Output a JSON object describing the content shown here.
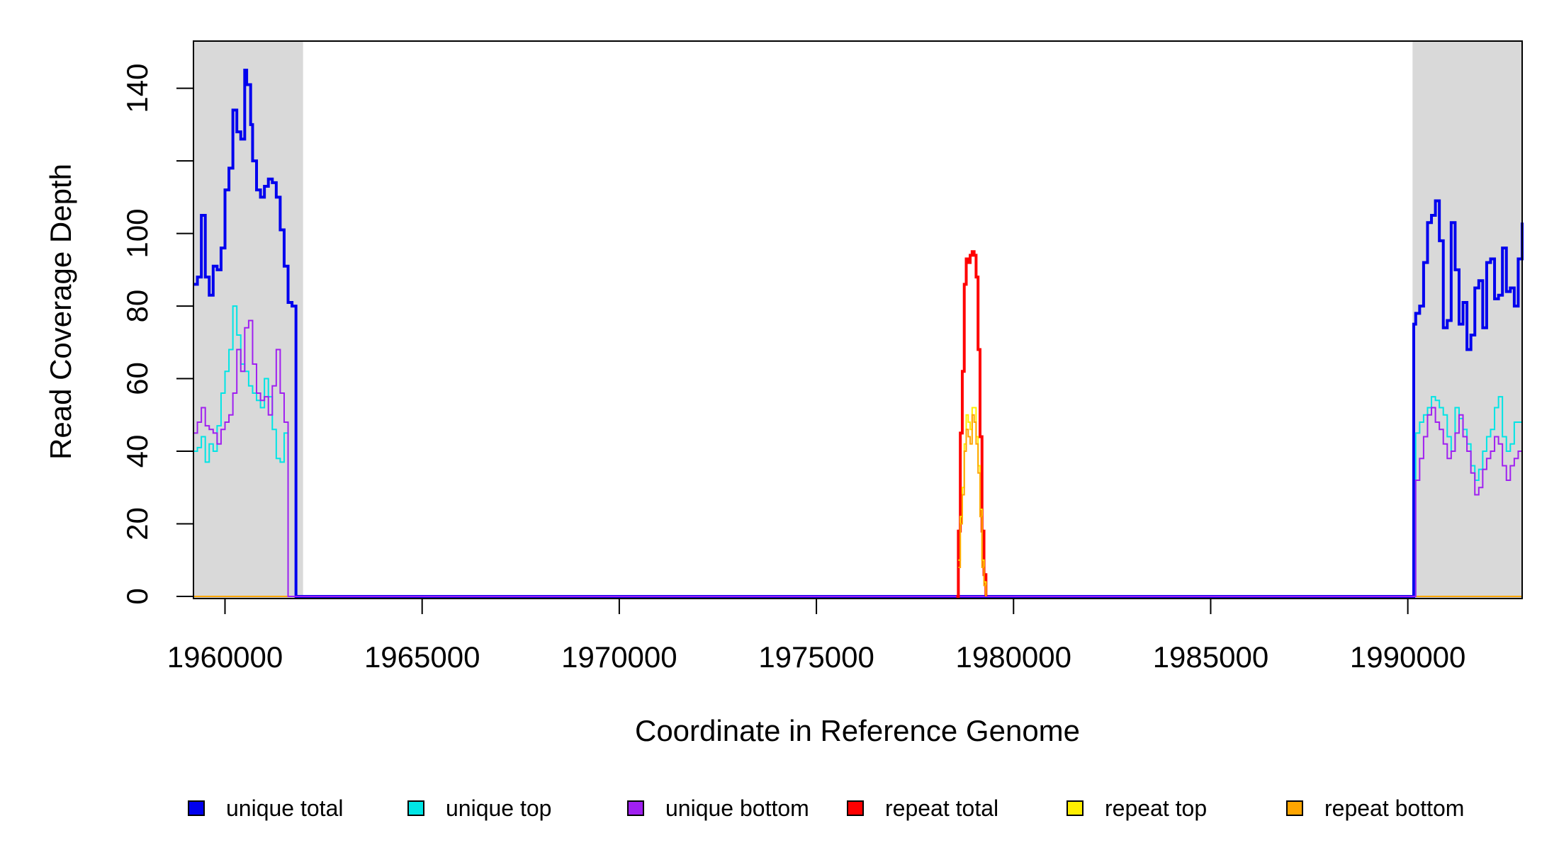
{
  "chart_data": {
    "type": "line",
    "xlabel": "Coordinate in Reference Genome",
    "ylabel": "Read Coverage Depth",
    "xlim": [
      1959200,
      1992900
    ],
    "ylim": [
      0,
      153
    ],
    "x_ticks": [
      1960000,
      1965000,
      1970000,
      1975000,
      1980000,
      1985000,
      1990000
    ],
    "x_tick_labels": [
      "1960000",
      "1965000",
      "1970000",
      "1975000",
      "1980000",
      "1985000",
      "1990000"
    ],
    "y_ticks": [
      0,
      20,
      40,
      60,
      80,
      100,
      120,
      140
    ],
    "y_tick_labels": [
      "0",
      "20",
      "40",
      "60",
      "80",
      "100",
      "",
      "140"
    ],
    "shaded_regions": [
      [
        1959200,
        1961980
      ],
      [
        1990120,
        1992900
      ]
    ],
    "series": [
      {
        "name": "unique total",
        "color": "#0000ee",
        "x": [
          1959200,
          1959300,
          1959400,
          1959500,
          1959600,
          1959700,
          1959800,
          1959900,
          1960000,
          1960100,
          1960200,
          1960300,
          1960400,
          1960500,
          1960550,
          1960600,
          1960650,
          1960700,
          1960800,
          1960900,
          1961000,
          1961100,
          1961200,
          1961300,
          1961400,
          1961500,
          1961600,
          1961700,
          1961800,
          1961900,
          1961950,
          1962000,
          1978000,
          1980000,
          1990100,
          1990150,
          1990200,
          1990300,
          1990400,
          1990500,
          1990600,
          1990700,
          1990800,
          1990900,
          1991000,
          1991100,
          1991200,
          1991300,
          1991400,
          1991500,
          1991600,
          1991700,
          1991800,
          1991900,
          1992000,
          1992100,
          1992200,
          1992300,
          1992400,
          1992500,
          1992600,
          1992700,
          1992800,
          1992900
        ],
        "y": [
          86,
          88,
          105,
          88,
          83,
          91,
          90,
          96,
          112,
          118,
          134,
          128,
          126,
          145,
          141,
          141,
          130,
          120,
          112,
          110,
          113,
          115,
          114,
          110,
          101,
          91,
          81,
          80,
          0,
          0,
          0,
          0,
          0,
          0,
          0,
          75,
          78,
          80,
          92,
          103,
          105,
          109,
          98,
          74,
          76,
          103,
          90,
          75,
          81,
          68,
          72,
          85,
          87,
          74,
          92,
          93,
          82,
          83,
          96,
          84,
          85,
          80,
          93,
          103
        ]
      },
      {
        "name": "unique top",
        "color": "#00e5e5",
        "x": [
          1959200,
          1959300,
          1959400,
          1959500,
          1959600,
          1959700,
          1959800,
          1959900,
          1960000,
          1960100,
          1960200,
          1960300,
          1960400,
          1960500,
          1960600,
          1960700,
          1960800,
          1960900,
          1961000,
          1961100,
          1961200,
          1961300,
          1961400,
          1961500,
          1961600,
          1961700,
          1961800,
          1961900,
          1961950,
          1962000,
          1990100,
          1990200,
          1990300,
          1990400,
          1990500,
          1990600,
          1990700,
          1990800,
          1990900,
          1991000,
          1991100,
          1991200,
          1991300,
          1991400,
          1991500,
          1991600,
          1991700,
          1991800,
          1991900,
          1992000,
          1992100,
          1992200,
          1992300,
          1992400,
          1992500,
          1992600,
          1992700,
          1992800,
          1992900
        ],
        "y": [
          40,
          41,
          44,
          37,
          42,
          40,
          47,
          56,
          62,
          68,
          80,
          72,
          64,
          62,
          58,
          56,
          54,
          52,
          60,
          55,
          46,
          38,
          37,
          45,
          0,
          0,
          0,
          0,
          0,
          0,
          0,
          45,
          48,
          50,
          52,
          55,
          54,
          52,
          50,
          44,
          40,
          52,
          49,
          46,
          42,
          36,
          32,
          35,
          40,
          44,
          46,
          52,
          55,
          44,
          40,
          42,
          48,
          48,
          50
        ]
      },
      {
        "name": "unique bottom",
        "color": "#a020f0",
        "x": [
          1959200,
          1959300,
          1959400,
          1959500,
          1959600,
          1959700,
          1959800,
          1959900,
          1960000,
          1960100,
          1960200,
          1960300,
          1960400,
          1960500,
          1960600,
          1960700,
          1960800,
          1960900,
          1961000,
          1961100,
          1961200,
          1961300,
          1961400,
          1961500,
          1961600,
          1961700,
          1961800,
          1961900,
          1961950,
          1962000,
          1990100,
          1990200,
          1990300,
          1990400,
          1990500,
          1990600,
          1990700,
          1990800,
          1990900,
          1991000,
          1991100,
          1991200,
          1991300,
          1991400,
          1991500,
          1991600,
          1991700,
          1991800,
          1991900,
          1992000,
          1992100,
          1992200,
          1992300,
          1992400,
          1992500,
          1992600,
          1992700,
          1992800,
          1992900
        ],
        "y": [
          45,
          48,
          52,
          47,
          46,
          45,
          42,
          46,
          48,
          50,
          56,
          68,
          62,
          74,
          76,
          64,
          56,
          54,
          55,
          50,
          58,
          68,
          56,
          48,
          0,
          0,
          0,
          0,
          0,
          0,
          0,
          32,
          38,
          44,
          50,
          52,
          48,
          46,
          42,
          38,
          40,
          45,
          50,
          44,
          40,
          34,
          28,
          30,
          35,
          38,
          40,
          44,
          42,
          36,
          32,
          36,
          38,
          40,
          42
        ]
      },
      {
        "name": "repeat total",
        "color": "#ff0000",
        "x": [
          1978550,
          1978600,
          1978650,
          1978700,
          1978750,
          1978800,
          1978850,
          1978900,
          1978950,
          1979000,
          1979050,
          1979100,
          1979150,
          1979200,
          1979250,
          1979300
        ],
        "y": [
          0,
          18,
          45,
          62,
          86,
          93,
          92,
          94,
          95,
          94,
          88,
          68,
          44,
          18,
          6,
          0
        ]
      },
      {
        "name": "repeat top",
        "color": "#ffee00",
        "x": [
          1978600,
          1978650,
          1978700,
          1978750,
          1978800,
          1978850,
          1978900,
          1978950,
          1979000,
          1979050,
          1979100,
          1979150,
          1979200,
          1979250,
          1979300
        ],
        "y": [
          10,
          22,
          30,
          42,
          50,
          48,
          46,
          52,
          52,
          44,
          36,
          24,
          10,
          4,
          0
        ]
      },
      {
        "name": "repeat bottom",
        "color": "#ffa500",
        "x": [
          1978600,
          1978650,
          1978700,
          1978750,
          1978800,
          1978850,
          1978900,
          1978950,
          1979000,
          1979050,
          1979100,
          1979150,
          1979200,
          1979250,
          1979300
        ],
        "y": [
          8,
          20,
          28,
          40,
          46,
          44,
          42,
          50,
          48,
          42,
          34,
          22,
          8,
          3,
          0
        ]
      }
    ],
    "legend": {
      "placement": "bottom"
    }
  }
}
